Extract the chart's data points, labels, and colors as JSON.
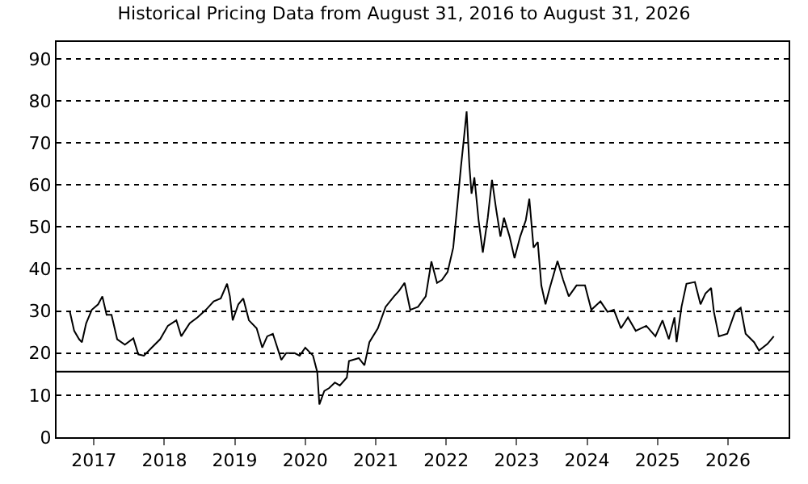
{
  "chart_data": {
    "type": "line",
    "title": "Historical Pricing Data from August 31, 2016 to August 31, 2026",
    "x": [
      2016.66,
      2016.72,
      2016.79,
      2016.83,
      2016.89,
      2016.97,
      2017.06,
      2017.12,
      2017.18,
      2017.25,
      2017.33,
      2017.44,
      2017.56,
      2017.63,
      2017.71,
      2017.82,
      2017.94,
      2018.05,
      2018.17,
      2018.24,
      2018.36,
      2018.47,
      2018.59,
      2018.7,
      2018.8,
      2018.89,
      2018.93,
      2018.97,
      2019.05,
      2019.12,
      2019.2,
      2019.31,
      2019.39,
      2019.46,
      2019.54,
      2019.66,
      2019.73,
      2019.85,
      2019.92,
      2020.0,
      2020.11,
      2020.17,
      2020.2,
      2020.27,
      2020.34,
      2020.42,
      2020.49,
      2020.59,
      2020.62,
      2020.76,
      2020.84,
      2020.91,
      2021.03,
      2021.14,
      2021.26,
      2021.33,
      2021.41,
      2021.49,
      2021.6,
      2021.71,
      2021.79,
      2021.87,
      2021.94,
      2022.02,
      2022.1,
      2022.16,
      2022.21,
      2022.25,
      2022.29,
      2022.33,
      2022.36,
      2022.4,
      2022.46,
      2022.52,
      2022.59,
      2022.65,
      2022.71,
      2022.77,
      2022.82,
      2022.9,
      2022.97,
      2023.05,
      2023.13,
      2023.18,
      2023.24,
      2023.3,
      2023.35,
      2023.41,
      2023.47,
      2023.58,
      2023.66,
      2023.74,
      2023.85,
      2023.97,
      2024.06,
      2024.19,
      2024.29,
      2024.38,
      2024.48,
      2024.58,
      2024.69,
      2024.84,
      2024.97,
      2025.07,
      2025.16,
      2025.24,
      2025.27,
      2025.34,
      2025.41,
      2025.53,
      2025.61,
      2025.68,
      2025.76,
      2025.8,
      2025.87,
      2025.99,
      2026.1,
      2026.18,
      2026.25,
      2026.37,
      2026.44,
      2026.56,
      2026.65
    ],
    "series": [
      {
        "color": "#000000",
        "values": [
          29.8,
          25.3,
          23.3,
          22.6,
          27.1,
          30.3,
          31.6,
          33.5,
          29.1,
          29.1,
          23.3,
          22,
          23.5,
          19.7,
          19.4,
          21.3,
          23.3,
          26.5,
          27.8,
          24,
          27.1,
          28.5,
          30.3,
          32.3,
          33,
          36.5,
          33.5,
          27.8,
          31.6,
          33,
          27.8,
          25.9,
          21.3,
          24,
          24.6,
          18.4,
          20,
          20,
          19.4,
          21.3,
          19.4,
          15.5,
          7.8,
          11,
          11.7,
          13,
          12.3,
          14.2,
          18.1,
          18.8,
          17.1,
          22.6,
          25.9,
          31,
          33.5,
          34.8,
          36.7,
          30.3,
          31,
          33.5,
          41.8,
          36.7,
          37.4,
          39.3,
          45.1,
          55.4,
          64.4,
          70.8,
          77.5,
          64.4,
          57.9,
          61.8,
          51.6,
          43.9,
          52.2,
          61.2,
          54.1,
          47.7,
          52.2,
          47.7,
          42.6,
          47.7,
          51.6,
          56.7,
          45.1,
          46.4,
          36.1,
          31.6,
          35.5,
          41.9,
          37.4,
          33.5,
          36.1,
          36.1,
          30.3,
          32.3,
          29.8,
          30.3,
          25.9,
          28.5,
          25.3,
          26.5,
          24,
          27.8,
          23.3,
          28.5,
          22.6,
          31,
          36.5,
          36.9,
          31.6,
          34.2,
          35.5,
          29.8,
          24,
          24.6,
          29.8,
          30.8,
          24.6,
          22.6,
          20.6,
          22.2,
          24
        ]
      }
    ],
    "xlim": [
      2016.47,
      2026.86
    ],
    "xticks": [
      {
        "value": 2017,
        "label": "2017"
      },
      {
        "value": 2018,
        "label": "2018"
      },
      {
        "value": 2019,
        "label": "2019"
      },
      {
        "value": 2020,
        "label": "2020"
      },
      {
        "value": 2021,
        "label": "2021"
      },
      {
        "value": 2022,
        "label": "2022"
      },
      {
        "value": 2023,
        "label": "2023"
      },
      {
        "value": 2024,
        "label": "2024"
      },
      {
        "value": 2025,
        "label": "2025"
      },
      {
        "value": 2026,
        "label": "2026"
      }
    ],
    "ylim": [
      0,
      94
    ],
    "yticks": [
      0,
      10,
      20,
      30,
      40,
      50,
      60,
      70,
      80,
      90
    ],
    "grid": "y",
    "line_style": "solid",
    "marker": "none",
    "ref_lines": [
      {
        "axis": "y",
        "value": 15.6,
        "color": "#000000",
        "line_style": "solid"
      }
    ]
  }
}
